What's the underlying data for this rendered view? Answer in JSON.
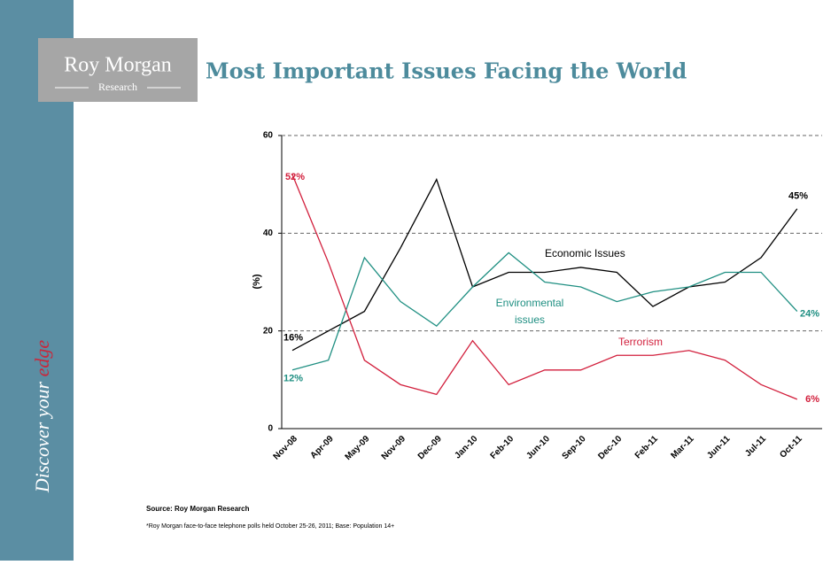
{
  "brand": {
    "name": "Roy Morgan",
    "subname": "Research",
    "tagline_start": "Discover your ",
    "tagline_end": "edge"
  },
  "chart_data": {
    "type": "line",
    "title": "Most Important Issues Facing the World",
    "ylabel": "(%)",
    "categories": [
      "Nov-08",
      "Apr-09",
      "May-09",
      "Nov-09",
      "Dec-09",
      "Jan-10",
      "Feb-10",
      "Jun-10",
      "Sep-10",
      "Dec-10",
      "Feb-11",
      "Mar-11",
      "Jun-11",
      "Jul-11",
      "Oct-11"
    ],
    "series": [
      {
        "name": "Economic Issues",
        "color": "#000000",
        "values": [
          16,
          20,
          24,
          37,
          51,
          29,
          32,
          32,
          33,
          32,
          25,
          29,
          30,
          35,
          45
        ],
        "value_labels": [
          "16%",
          null,
          null,
          null,
          null,
          null,
          null,
          null,
          null,
          null,
          null,
          null,
          null,
          null,
          "45%"
        ]
      },
      {
        "name": "Environmental issues",
        "color": "#1f8f82",
        "values": [
          12,
          14,
          35,
          26,
          21,
          29,
          36,
          30,
          29,
          26,
          28,
          29,
          32,
          32,
          24
        ],
        "value_labels": [
          "12%",
          null,
          null,
          null,
          null,
          null,
          null,
          null,
          null,
          null,
          null,
          null,
          null,
          null,
          "24%"
        ]
      },
      {
        "name": "Terrorism",
        "color": "#d21f3c",
        "values": [
          52,
          34,
          14,
          9,
          7,
          18,
          9,
          12,
          12,
          15,
          15,
          16,
          14,
          9,
          6
        ],
        "value_labels": [
          "52%",
          null,
          null,
          null,
          null,
          null,
          null,
          null,
          null,
          null,
          null,
          null,
          null,
          null,
          "6%"
        ]
      }
    ],
    "ylim": [
      0,
      60
    ],
    "yticks": [
      0,
      20,
      40,
      60
    ],
    "grid": true,
    "source": "Source: Roy Morgan Research",
    "note": "*Roy Morgan face-to-face telephone polls held October 25-26, 2011; Base: Population 14+"
  }
}
